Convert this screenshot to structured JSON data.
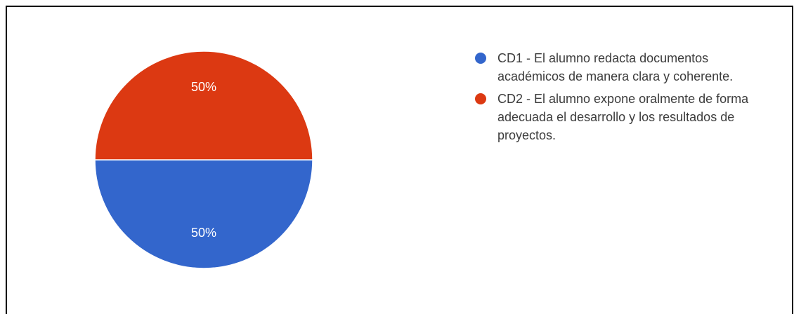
{
  "chart_data": {
    "type": "pie",
    "title": "",
    "slices": [
      {
        "label": "CD1 - El alumno redacta documentos académicos de manera clara y coherente.",
        "value": 50,
        "data_label": "50%",
        "color": "#3366cc"
      },
      {
        "label": "CD2 - El alumno expone oralmente de forma adecuada el desarrollo y los resultados de proyectos.",
        "value": 50,
        "data_label": "50%",
        "color": "#dc3912"
      }
    ],
    "legend_position": "right"
  }
}
